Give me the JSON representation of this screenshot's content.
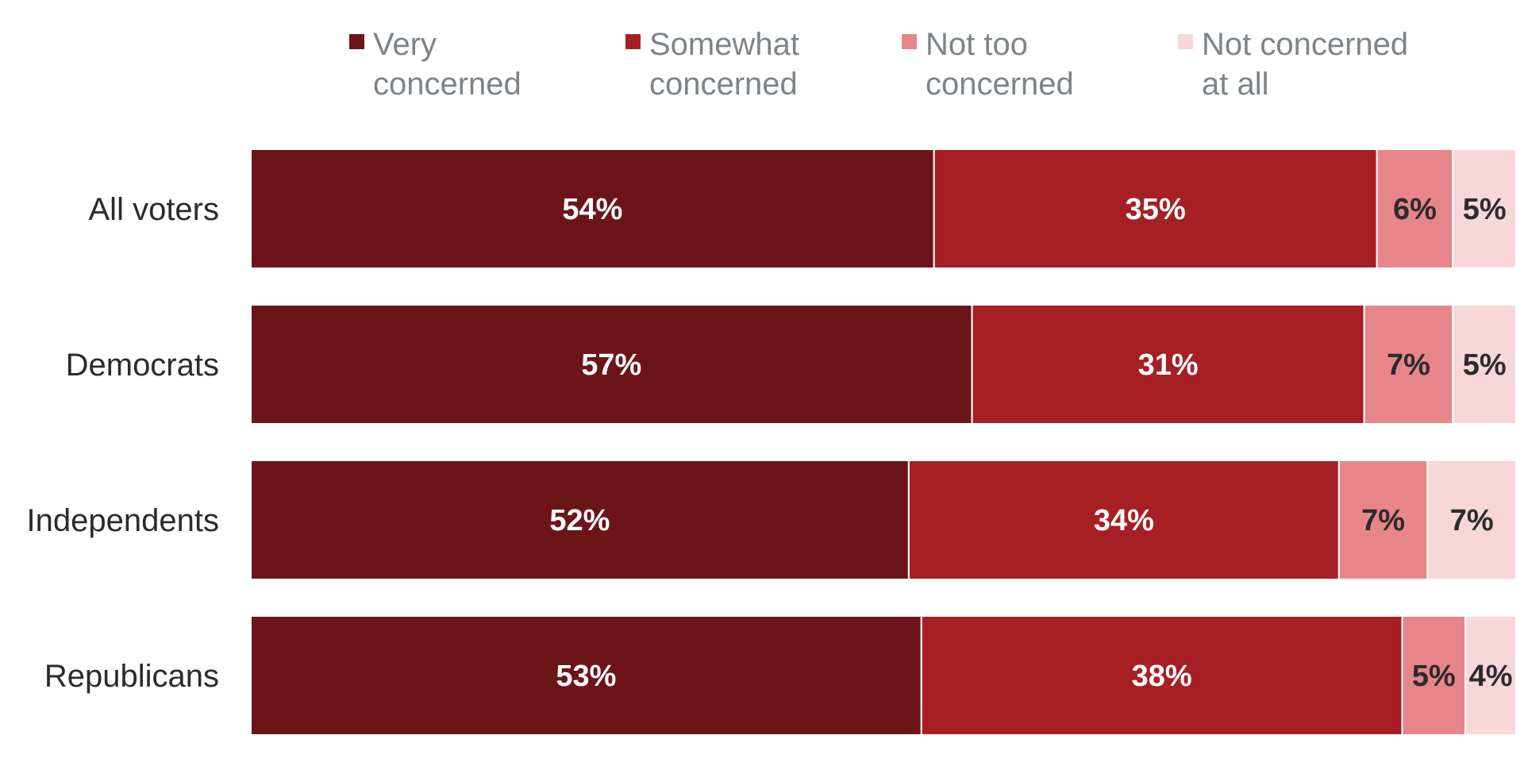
{
  "chart_data": {
    "type": "bar",
    "orientation": "horizontal",
    "stacked": true,
    "categories": [
      "All voters",
      "Democrats",
      "Independents",
      "Republicans"
    ],
    "series": [
      {
        "name": "Very concerned",
        "legend_lines": [
          "Very",
          "concerned"
        ],
        "color": "#6b1519",
        "label_color": "#ffffff",
        "values": [
          54,
          57,
          52,
          53
        ]
      },
      {
        "name": "Somewhat concerned",
        "legend_lines": [
          "Somewhat",
          "concerned"
        ],
        "color": "#a51f25",
        "label_color": "#ffffff",
        "values": [
          35,
          31,
          34,
          38
        ]
      },
      {
        "name": "Not too concerned",
        "legend_lines": [
          "Not too",
          "concerned"
        ],
        "color": "#e8858a",
        "label_color": "#2b2b2b",
        "values": [
          6,
          7,
          7,
          5
        ]
      },
      {
        "name": "Not concerned at all",
        "legend_lines": [
          "Not concerned",
          "at all"
        ],
        "color": "#f7d7d8",
        "label_color": "#2b2b2b",
        "values": [
          5,
          5,
          7,
          4
        ]
      }
    ],
    "value_suffix": "%",
    "xlim": [
      0,
      100
    ],
    "legend_position": "top",
    "grid": false
  }
}
